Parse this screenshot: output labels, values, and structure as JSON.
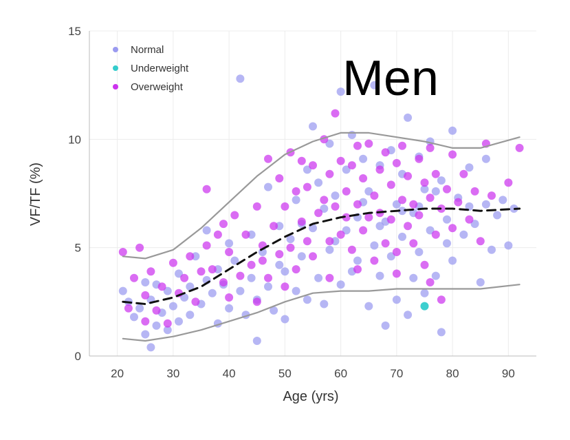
{
  "chart_data": {
    "type": "scatter",
    "title": "",
    "panel_label": "Men",
    "xlabel": "Age (yrs)",
    "ylabel": "VF/TF (%)",
    "xlim": [
      15,
      95
    ],
    "ylim": [
      0,
      15
    ],
    "x_ticks": [
      20,
      30,
      40,
      50,
      60,
      70,
      80,
      90
    ],
    "y_ticks": [
      0,
      5,
      10,
      15
    ],
    "grid": true,
    "legend": {
      "placement": "top-left",
      "entries": [
        {
          "name": "Normal",
          "color": "#9a9af0"
        },
        {
          "name": "Underweight",
          "color": "#33cccc"
        },
        {
          "name": "Overweight",
          "color": "#cc33ee"
        }
      ]
    },
    "series": [
      {
        "name": "Normal",
        "color": "#9a9af0",
        "points": [
          [
            21,
            3.0
          ],
          [
            22,
            2.5
          ],
          [
            23,
            1.8
          ],
          [
            24,
            2.2
          ],
          [
            25,
            1.0
          ],
          [
            25,
            3.4
          ],
          [
            26,
            0.4
          ],
          [
            26,
            2.6
          ],
          [
            27,
            1.4
          ],
          [
            27,
            3.3
          ],
          [
            28,
            2.0
          ],
          [
            29,
            1.2
          ],
          [
            29,
            3.0
          ],
          [
            30,
            2.3
          ],
          [
            31,
            1.6
          ],
          [
            31,
            3.8
          ],
          [
            32,
            2.7
          ],
          [
            33,
            1.9
          ],
          [
            33,
            3.2
          ],
          [
            34,
            4.6
          ],
          [
            35,
            2.4
          ],
          [
            36,
            3.5
          ],
          [
            36,
            5.8
          ],
          [
            37,
            2.9
          ],
          [
            38,
            4.0
          ],
          [
            38,
            1.5
          ],
          [
            39,
            3.3
          ],
          [
            40,
            5.2
          ],
          [
            40,
            2.2
          ],
          [
            41,
            4.4
          ],
          [
            42,
            12.8
          ],
          [
            42,
            3.0
          ],
          [
            43,
            1.9
          ],
          [
            44,
            5.6
          ],
          [
            44,
            3.6
          ],
          [
            45,
            0.7
          ],
          [
            45,
            2.6
          ],
          [
            46,
            4.8
          ],
          [
            47,
            3.2
          ],
          [
            47,
            7.8
          ],
          [
            48,
            2.1
          ],
          [
            49,
            4.2
          ],
          [
            49,
            6.0
          ],
          [
            50,
            1.7
          ],
          [
            50,
            3.9
          ],
          [
            51,
            5.4
          ],
          [
            52,
            3.0
          ],
          [
            52,
            7.2
          ],
          [
            53,
            4.6
          ],
          [
            54,
            2.6
          ],
          [
            54,
            8.6
          ],
          [
            55,
            10.6
          ],
          [
            55,
            5.9
          ],
          [
            56,
            3.6
          ],
          [
            57,
            6.8
          ],
          [
            57,
            2.4
          ],
          [
            58,
            9.8
          ],
          [
            58,
            4.9
          ],
          [
            59,
            7.4
          ],
          [
            60,
            3.3
          ],
          [
            60,
            12.2
          ],
          [
            61,
            8.6
          ],
          [
            61,
            5.8
          ],
          [
            62,
            3.9
          ],
          [
            62,
            10.2
          ],
          [
            63,
            6.4
          ],
          [
            63,
            4.4
          ],
          [
            64,
            9.1
          ],
          [
            65,
            2.3
          ],
          [
            65,
            7.6
          ],
          [
            66,
            5.1
          ],
          [
            66,
            12.5
          ],
          [
            67,
            8.8
          ],
          [
            67,
            3.7
          ],
          [
            68,
            6.2
          ],
          [
            68,
            1.4
          ],
          [
            69,
            9.5
          ],
          [
            69,
            4.6
          ],
          [
            70,
            7.0
          ],
          [
            70,
            2.6
          ],
          [
            71,
            5.5
          ],
          [
            71,
            8.4
          ],
          [
            72,
            1.9
          ],
          [
            72,
            11.0
          ],
          [
            73,
            6.6
          ],
          [
            73,
            3.6
          ],
          [
            74,
            9.2
          ],
          [
            74,
            4.8
          ],
          [
            75,
            7.7
          ],
          [
            75,
            2.9
          ],
          [
            76,
            5.8
          ],
          [
            76,
            9.9
          ],
          [
            77,
            3.7
          ],
          [
            78,
            8.1
          ],
          [
            78,
            1.1
          ],
          [
            79,
            6.3
          ],
          [
            80,
            4.4
          ],
          [
            80,
            10.4
          ],
          [
            81,
            7.3
          ],
          [
            82,
            5.6
          ],
          [
            83,
            8.7
          ],
          [
            84,
            6.1
          ],
          [
            85,
            3.4
          ],
          [
            86,
            9.1
          ],
          [
            86,
            7.0
          ],
          [
            87,
            4.9
          ],
          [
            88,
            6.5
          ],
          [
            89,
            7.2
          ],
          [
            90,
            5.1
          ],
          [
            91,
            6.8
          ],
          [
            53,
            6.1
          ],
          [
            56,
            8.0
          ],
          [
            59,
            5.3
          ],
          [
            64,
            7.1
          ],
          [
            67,
            6.0
          ],
          [
            71,
            6.7
          ],
          [
            74,
            6.9
          ],
          [
            77,
            7.6
          ],
          [
            79,
            5.2
          ],
          [
            83,
            6.9
          ]
        ]
      },
      {
        "name": "Underweight",
        "color": "#33cccc",
        "points": [
          [
            75,
            2.3
          ]
        ]
      },
      {
        "name": "Overweight",
        "color": "#cc33ee",
        "points": [
          [
            21,
            4.8
          ],
          [
            22,
            2.2
          ],
          [
            23,
            3.6
          ],
          [
            24,
            5.0
          ],
          [
            25,
            1.6
          ],
          [
            25,
            2.8
          ],
          [
            26,
            3.9
          ],
          [
            27,
            2.1
          ],
          [
            28,
            3.2
          ],
          [
            29,
            1.5
          ],
          [
            30,
            4.3
          ],
          [
            31,
            2.9
          ],
          [
            32,
            3.6
          ],
          [
            33,
            4.6
          ],
          [
            34,
            2.5
          ],
          [
            35,
            3.9
          ],
          [
            36,
            7.7
          ],
          [
            36,
            5.1
          ],
          [
            37,
            4.0
          ],
          [
            38,
            5.6
          ],
          [
            39,
            3.4
          ],
          [
            39,
            6.1
          ],
          [
            40,
            4.8
          ],
          [
            40,
            2.7
          ],
          [
            41,
            6.5
          ],
          [
            42,
            3.7
          ],
          [
            43,
            5.6
          ],
          [
            44,
            4.2
          ],
          [
            45,
            6.9
          ],
          [
            45,
            2.5
          ],
          [
            46,
            5.1
          ],
          [
            47,
            3.6
          ],
          [
            47,
            9.1
          ],
          [
            48,
            6.0
          ],
          [
            49,
            4.7
          ],
          [
            49,
            8.2
          ],
          [
            50,
            3.2
          ],
          [
            50,
            6.9
          ],
          [
            51,
            9.4
          ],
          [
            51,
            5.0
          ],
          [
            52,
            7.6
          ],
          [
            52,
            4.0
          ],
          [
            53,
            9.0
          ],
          [
            53,
            6.2
          ],
          [
            54,
            5.3
          ],
          [
            54,
            7.8
          ],
          [
            55,
            8.8
          ],
          [
            55,
            4.6
          ],
          [
            56,
            6.6
          ],
          [
            57,
            10.0
          ],
          [
            57,
            7.2
          ],
          [
            58,
            5.3
          ],
          [
            58,
            8.4
          ],
          [
            59,
            6.9
          ],
          [
            59,
            11.2
          ],
          [
            60,
            9.0
          ],
          [
            60,
            5.6
          ],
          [
            61,
            7.6
          ],
          [
            61,
            6.4
          ],
          [
            62,
            8.8
          ],
          [
            62,
            4.9
          ],
          [
            63,
            9.7
          ],
          [
            63,
            7.0
          ],
          [
            64,
            5.8
          ],
          [
            64,
            8.2
          ],
          [
            65,
            6.4
          ],
          [
            65,
            9.8
          ],
          [
            66,
            7.4
          ],
          [
            66,
            4.4
          ],
          [
            67,
            8.6
          ],
          [
            67,
            6.6
          ],
          [
            68,
            9.4
          ],
          [
            68,
            5.2
          ],
          [
            69,
            7.9
          ],
          [
            69,
            6.3
          ],
          [
            70,
            8.9
          ],
          [
            70,
            4.8
          ],
          [
            71,
            7.2
          ],
          [
            71,
            9.7
          ],
          [
            72,
            6.0
          ],
          [
            72,
            8.3
          ],
          [
            73,
            7.0
          ],
          [
            73,
            5.2
          ],
          [
            74,
            9.1
          ],
          [
            74,
            6.5
          ],
          [
            75,
            8.0
          ],
          [
            75,
            4.2
          ],
          [
            76,
            7.3
          ],
          [
            76,
            9.6
          ],
          [
            77,
            5.6
          ],
          [
            77,
            8.4
          ],
          [
            78,
            6.8
          ],
          [
            79,
            7.7
          ],
          [
            80,
            9.3
          ],
          [
            80,
            5.9
          ],
          [
            81,
            7.1
          ],
          [
            82,
            8.4
          ],
          [
            83,
            6.3
          ],
          [
            84,
            7.6
          ],
          [
            85,
            5.3
          ],
          [
            86,
            9.8
          ],
          [
            87,
            7.4
          ],
          [
            90,
            8.0
          ],
          [
            92,
            9.6
          ],
          [
            46,
            4.4
          ],
          [
            58,
            3.6
          ],
          [
            63,
            4.0
          ],
          [
            70,
            3.8
          ],
          [
            76,
            3.4
          ],
          [
            78,
            2.6
          ]
        ]
      }
    ],
    "lines": [
      {
        "name": "",
        "style": "dashed",
        "color": "#111111",
        "points": [
          [
            21,
            2.5
          ],
          [
            25,
            2.4
          ],
          [
            30,
            2.7
          ],
          [
            35,
            3.2
          ],
          [
            40,
            4.0
          ],
          [
            45,
            4.8
          ],
          [
            50,
            5.5
          ],
          [
            55,
            6.1
          ],
          [
            60,
            6.4
          ],
          [
            65,
            6.6
          ],
          [
            70,
            6.7
          ],
          [
            75,
            6.8
          ],
          [
            80,
            6.8
          ],
          [
            85,
            6.7
          ],
          [
            92,
            6.8
          ]
        ]
      },
      {
        "name": "",
        "style": "solid",
        "color": "#999999",
        "points": [
          [
            21,
            4.6
          ],
          [
            25,
            4.5
          ],
          [
            30,
            4.9
          ],
          [
            35,
            5.9
          ],
          [
            40,
            7.1
          ],
          [
            45,
            8.3
          ],
          [
            50,
            9.3
          ],
          [
            55,
            9.9
          ],
          [
            60,
            10.3
          ],
          [
            65,
            10.3
          ],
          [
            70,
            10.1
          ],
          [
            75,
            9.9
          ],
          [
            80,
            9.6
          ],
          [
            85,
            9.6
          ],
          [
            92,
            10.1
          ]
        ]
      },
      {
        "name": "",
        "style": "solid",
        "color": "#999999",
        "points": [
          [
            21,
            0.8
          ],
          [
            25,
            0.7
          ],
          [
            30,
            0.9
          ],
          [
            35,
            1.2
          ],
          [
            40,
            1.6
          ],
          [
            45,
            2.0
          ],
          [
            50,
            2.5
          ],
          [
            55,
            2.9
          ],
          [
            60,
            3.0
          ],
          [
            65,
            3.0
          ],
          [
            70,
            3.1
          ],
          [
            75,
            3.1
          ],
          [
            80,
            3.1
          ],
          [
            85,
            3.1
          ],
          [
            92,
            3.3
          ]
        ]
      }
    ]
  }
}
